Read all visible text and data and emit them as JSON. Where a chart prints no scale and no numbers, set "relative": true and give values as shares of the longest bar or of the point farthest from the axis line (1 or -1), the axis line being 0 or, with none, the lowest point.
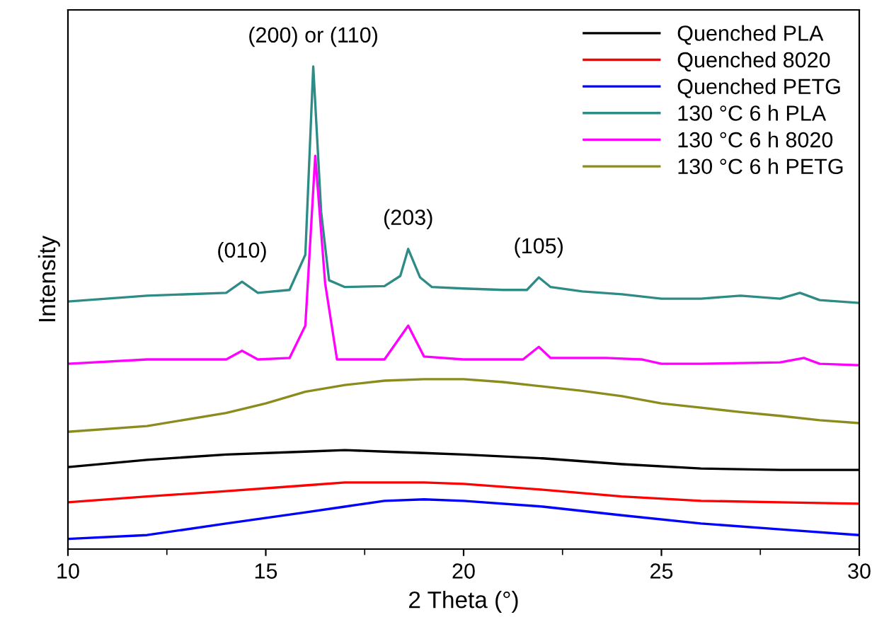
{
  "chart_data": {
    "type": "line",
    "relative": true,
    "xlabel": "2 Theta (°)",
    "ylabel": "Intensity",
    "xlim": [
      10,
      30
    ],
    "xticks": [
      10,
      15,
      20,
      25,
      30
    ],
    "tick_labels": "x",
    "legend": "top right",
    "grid": false,
    "marker": "none",
    "line_style": "solid",
    "annotations": [
      {
        "text": "(010)",
        "x": 14.4,
        "y": 0.554
      },
      {
        "text": "(200) or (110)",
        "x": 16.2,
        "y": 1.0
      },
      {
        "text": "(203)",
        "x": 18.6,
        "y": 0.622
      },
      {
        "text": "(105)",
        "x": 21.9,
        "y": 0.563
      }
    ],
    "series": [
      {
        "name": "Quenched PLA",
        "color": "#000000",
        "x": [
          10,
          12,
          14,
          16,
          17,
          18,
          19,
          20,
          22,
          24,
          26,
          28,
          30
        ],
        "values": [
          0.17,
          0.185,
          0.196,
          0.202,
          0.205,
          0.202,
          0.199,
          0.196,
          0.188,
          0.176,
          0.167,
          0.164,
          0.164
        ]
      },
      {
        "name": "Quenched 8020",
        "color": "#ff0000",
        "x": [
          10,
          12,
          14,
          16,
          17,
          19,
          20,
          22,
          24,
          26,
          28,
          30
        ],
        "values": [
          0.097,
          0.109,
          0.12,
          0.132,
          0.138,
          0.138,
          0.135,
          0.123,
          0.109,
          0.1,
          0.097,
          0.094
        ]
      },
      {
        "name": "Quenched PETG",
        "color": "#0000ff",
        "x": [
          10,
          12,
          14,
          16,
          17,
          18,
          19,
          20,
          22,
          24,
          26,
          28,
          30
        ],
        "values": [
          0.021,
          0.029,
          0.053,
          0.076,
          0.088,
          0.1,
          0.103,
          0.1,
          0.088,
          0.07,
          0.053,
          0.041,
          0.029
        ]
      },
      {
        "name": "130 °C 6 h PLA",
        "color": "#2e8b85",
        "x": [
          10,
          12,
          14,
          14.4,
          14.8,
          15.6,
          16.0,
          16.2,
          16.4,
          16.6,
          17,
          18,
          18.4,
          18.6,
          18.9,
          19.2,
          20,
          21,
          21.6,
          21.9,
          22.2,
          23,
          24,
          25,
          26,
          27,
          28,
          28.5,
          29,
          30
        ],
        "values": [
          0.513,
          0.525,
          0.531,
          0.554,
          0.531,
          0.537,
          0.61,
          1.0,
          0.698,
          0.557,
          0.543,
          0.545,
          0.566,
          0.622,
          0.563,
          0.543,
          0.54,
          0.537,
          0.537,
          0.563,
          0.543,
          0.534,
          0.528,
          0.519,
          0.519,
          0.525,
          0.519,
          0.531,
          0.516,
          0.51
        ]
      },
      {
        "name": "130 °C 6 h 8020",
        "color": "#ff00ff",
        "x": [
          10,
          12,
          14,
          14.4,
          14.8,
          15.6,
          16.0,
          16.25,
          16.5,
          16.8,
          18,
          18.6,
          19,
          20,
          21.5,
          21.9,
          22.2,
          23.6,
          24.5,
          25,
          26,
          28,
          28.6,
          29,
          30
        ],
        "values": [
          0.384,
          0.393,
          0.393,
          0.411,
          0.393,
          0.396,
          0.463,
          0.815,
          0.551,
          0.393,
          0.393,
          0.463,
          0.399,
          0.393,
          0.393,
          0.419,
          0.396,
          0.396,
          0.393,
          0.384,
          0.384,
          0.387,
          0.396,
          0.384,
          0.381
        ]
      },
      {
        "name": "130 °C 6 h PETG",
        "color": "#8b8b1e",
        "x": [
          10,
          12,
          14,
          15,
          16,
          17,
          18,
          19,
          20,
          21,
          22,
          23,
          24,
          25,
          26,
          27,
          28,
          29,
          30
        ],
        "values": [
          0.243,
          0.255,
          0.282,
          0.302,
          0.326,
          0.34,
          0.349,
          0.352,
          0.352,
          0.346,
          0.337,
          0.328,
          0.317,
          0.302,
          0.293,
          0.284,
          0.276,
          0.267,
          0.261
        ]
      }
    ]
  }
}
